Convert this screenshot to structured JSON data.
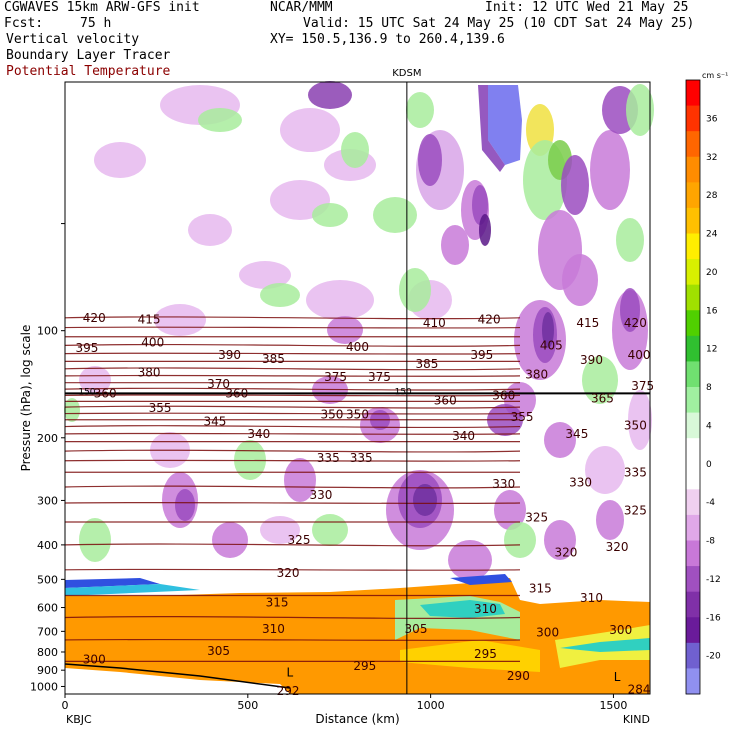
{
  "header": {
    "model": "CGWAVES 15km ARW-GFS init",
    "fcst_label": "Fcst:",
    "fcst_value": "75 h",
    "org": "NCAR/MMM",
    "init": "Init: 12 UTC Wed 21 May 25",
    "valid": "Valid: 15 UTC Sat 24 May 25 (10 CDT Sat 24 May 25)",
    "xy": "XY= 150.5,136.9 to 260.4,139.6",
    "field1": "Vertical velocity",
    "field2": "Boundary Layer Tracer",
    "field3": "Potential Temperature",
    "field3_color": "#8b0000"
  },
  "chart_data": {
    "type": "heatmap",
    "title": "",
    "station_marker": "KDSM",
    "station_marker_x_km": 935,
    "xlabel": "Distance (km)",
    "ylabel": "Pressure (hPa), log scale",
    "x_ticks": [
      "0",
      "500",
      "1000",
      "1500"
    ],
    "x_tick_values": [
      0,
      500,
      1000,
      1500
    ],
    "xlim": [
      0,
      1600
    ],
    "x_left_station": "KBJC",
    "x_right_station": "KIND",
    "y_ticks": [
      "100",
      "200",
      "300",
      "400",
      "500",
      "600",
      "700",
      "800",
      "900",
      "1000"
    ],
    "y_tick_values": [
      100,
      200,
      300,
      400,
      500,
      600,
      700,
      800,
      900,
      1000
    ],
    "ylim": [
      1050,
      20
    ],
    "y_scale": "log",
    "colorbar": {
      "units": "cm s⁻¹",
      "tick_labels": [
        "36",
        "32",
        "28",
        "24",
        "20",
        "16",
        "12",
        "8",
        "4",
        "0",
        "-4",
        "-8",
        "-12",
        "-16",
        "-20"
      ],
      "tick_values": [
        36,
        32,
        28,
        24,
        20,
        16,
        12,
        8,
        4,
        0,
        -4,
        -8,
        -12,
        -16,
        -20
      ],
      "colors": [
        "#ff0000",
        "#ff3300",
        "#ff6600",
        "#ff8c00",
        "#ffa500",
        "#ffc000",
        "#ffee00",
        "#d8f000",
        "#a0e000",
        "#50d000",
        "#30c030",
        "#70e070",
        "#a0f0a0",
        "#d8f8d8",
        "#ffffff",
        "#ffffff",
        "#f0d0f0",
        "#e0a8e8",
        "#c878d8",
        "#a050c0",
        "#8030a8",
        "#6a1b9a",
        "#7060d0",
        "#9090f0"
      ]
    },
    "theta_labels": [
      {
        "text": "420",
        "x": 80,
        "p": 92
      },
      {
        "text": "415",
        "x": 230,
        "p": 93
      },
      {
        "text": "410",
        "x": 1010,
        "p": 95
      },
      {
        "text": "420",
        "x": 1160,
        "p": 93
      },
      {
        "text": "415",
        "x": 1430,
        "p": 95
      },
      {
        "text": "420",
        "x": 1560,
        "p": 95
      },
      {
        "text": "395",
        "x": 60,
        "p": 112
      },
      {
        "text": "400",
        "x": 240,
        "p": 108
      },
      {
        "text": "390",
        "x": 450,
        "p": 117
      },
      {
        "text": "385",
        "x": 570,
        "p": 120
      },
      {
        "text": "400",
        "x": 800,
        "p": 111
      },
      {
        "text": "385",
        "x": 990,
        "p": 124
      },
      {
        "text": "395",
        "x": 1140,
        "p": 117
      },
      {
        "text": "405",
        "x": 1330,
        "p": 110
      },
      {
        "text": "390",
        "x": 1440,
        "p": 121
      },
      {
        "text": "400",
        "x": 1570,
        "p": 117
      },
      {
        "text": "380",
        "x": 230,
        "p": 131
      },
      {
        "text": "370",
        "x": 420,
        "p": 141
      },
      {
        "text": "375",
        "x": 740,
        "p": 135
      },
      {
        "text": "375",
        "x": 860,
        "p": 135
      },
      {
        "text": "380",
        "x": 1290,
        "p": 133
      },
      {
        "text": "375",
        "x": 1580,
        "p": 143
      },
      {
        "text": "360",
        "x": 110,
        "p": 150
      },
      {
        "text": "360",
        "x": 470,
        "p": 150
      },
      {
        "text": "360",
        "x": 1040,
        "p": 157
      },
      {
        "text": "360",
        "x": 1200,
        "p": 152
      },
      {
        "text": "365",
        "x": 1470,
        "p": 155
      },
      {
        "text": "355",
        "x": 260,
        "p": 165
      },
      {
        "text": "350",
        "x": 730,
        "p": 172
      },
      {
        "text": "350",
        "x": 800,
        "p": 172
      },
      {
        "text": "355",
        "x": 1250,
        "p": 175
      },
      {
        "text": "350",
        "x": 1560,
        "p": 185
      },
      {
        "text": "345",
        "x": 410,
        "p": 180
      },
      {
        "text": "340",
        "x": 530,
        "p": 195
      },
      {
        "text": "340",
        "x": 1090,
        "p": 198
      },
      {
        "text": "345",
        "x": 1400,
        "p": 195
      },
      {
        "text": "335",
        "x": 720,
        "p": 228
      },
      {
        "text": "335",
        "x": 810,
        "p": 228
      },
      {
        "text": "335",
        "x": 1560,
        "p": 250
      },
      {
        "text": "330",
        "x": 700,
        "p": 290
      },
      {
        "text": "330",
        "x": 1200,
        "p": 270
      },
      {
        "text": "330",
        "x": 1410,
        "p": 267
      },
      {
        "text": "325",
        "x": 640,
        "p": 388
      },
      {
        "text": "325",
        "x": 1290,
        "p": 335
      },
      {
        "text": "325",
        "x": 1560,
        "p": 320
      },
      {
        "text": "320",
        "x": 610,
        "p": 480
      },
      {
        "text": "320",
        "x": 1370,
        "p": 420
      },
      {
        "text": "320",
        "x": 1510,
        "p": 405
      },
      {
        "text": "315",
        "x": 580,
        "p": 580
      },
      {
        "text": "315",
        "x": 1300,
        "p": 530
      },
      {
        "text": "310",
        "x": 1440,
        "p": 565
      },
      {
        "text": "310",
        "x": 1150,
        "p": 605
      },
      {
        "text": "310",
        "x": 570,
        "p": 690
      },
      {
        "text": "305",
        "x": 960,
        "p": 690
      },
      {
        "text": "300",
        "x": 1320,
        "p": 705
      },
      {
        "text": "300",
        "x": 1520,
        "p": 695
      },
      {
        "text": "305",
        "x": 420,
        "p": 795
      },
      {
        "text": "300",
        "x": 80,
        "p": 840
      },
      {
        "text": "295",
        "x": 820,
        "p": 875
      },
      {
        "text": "295",
        "x": 1150,
        "p": 810
      },
      {
        "text": "290",
        "x": 1240,
        "p": 935
      },
      {
        "text": "292",
        "x": 610,
        "p": 1030
      },
      {
        "text": "284",
        "x": 1570,
        "p": 1020
      }
    ],
    "l_markers": [
      {
        "text": "L",
        "x": 615,
        "p": 915
      },
      {
        "text": "L",
        "x": 1510,
        "p": 940
      }
    ],
    "tropopause_labels": [
      {
        "text": "150",
        "x": 60,
        "p": 148
      },
      {
        "text": "150",
        "x": 925,
        "p": 148
      }
    ]
  }
}
